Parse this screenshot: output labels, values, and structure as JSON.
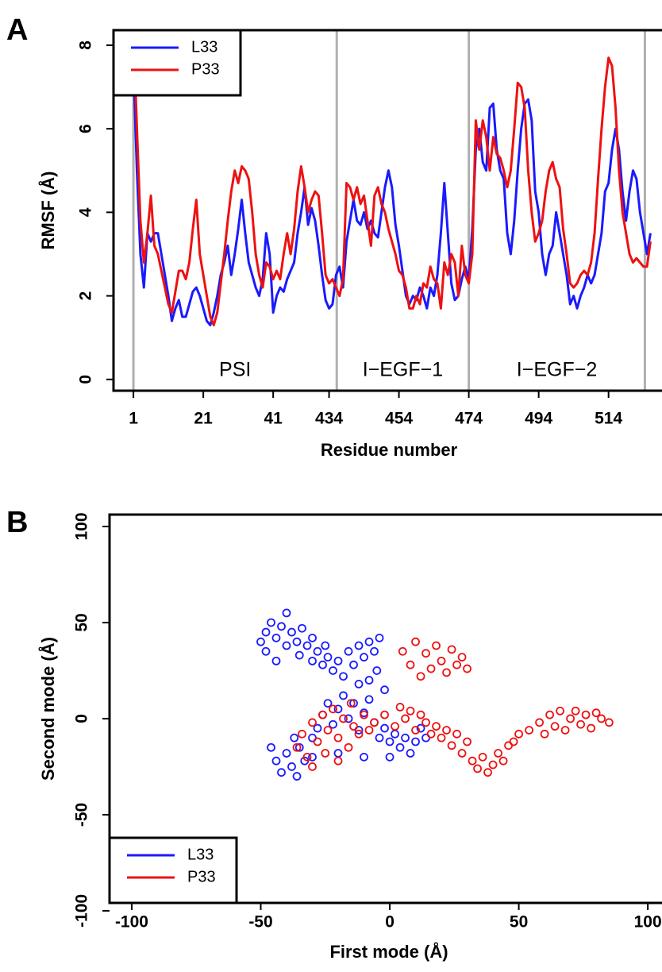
{
  "chart_data": [
    {
      "type": "line",
      "panel_label": "A",
      "xlabel": "Residue number",
      "ylabel": "RMSF (Å)",
      "x": [
        0,
        1,
        2,
        3,
        4,
        5,
        6,
        7,
        8,
        9,
        10,
        11,
        12,
        13,
        14,
        15,
        16,
        17,
        18,
        19,
        20,
        21,
        22,
        23,
        24,
        25,
        26,
        27,
        28,
        29,
        30,
        31,
        32,
        33,
        34,
        35,
        36,
        37,
        38,
        39,
        40,
        41,
        42,
        43,
        44,
        45,
        46,
        47,
        48,
        49,
        50,
        51,
        52,
        53,
        54,
        55,
        56,
        57,
        58,
        59,
        60,
        61,
        62,
        63,
        64,
        65,
        66,
        67,
        68,
        69,
        70,
        71,
        72,
        73,
        74,
        75,
        76,
        77,
        78,
        79,
        80,
        81,
        82,
        83,
        84,
        85,
        86,
        87,
        88,
        89,
        90,
        91,
        92,
        93,
        94,
        95,
        96,
        97,
        98,
        99,
        100,
        101,
        102,
        103,
        104,
        105,
        106,
        107,
        108,
        109,
        110,
        111,
        112,
        113,
        114,
        115,
        116,
        117,
        118,
        119,
        120,
        121,
        122,
        123,
        124,
        125,
        126,
        127,
        128,
        129,
        130,
        131,
        132,
        133,
        134,
        135,
        136,
        137,
        138,
        139,
        140,
        141,
        142,
        143,
        144,
        145,
        146,
        147,
        148
      ],
      "series": [
        {
          "name": "L33",
          "color": "#1a1aff",
          "values": [
            7.5,
            5.0,
            3.0,
            2.2,
            3.5,
            3.3,
            3.5,
            3.5,
            3.0,
            2.5,
            2.0,
            1.4,
            1.7,
            1.9,
            1.5,
            1.5,
            1.8,
            2.1,
            2.2,
            2.0,
            1.7,
            1.4,
            1.3,
            1.6,
            2.0,
            2.5,
            2.8,
            3.2,
            2.5,
            3.0,
            3.6,
            4.3,
            3.5,
            2.8,
            2.5,
            2.2,
            2.0,
            2.4,
            3.5,
            3.0,
            1.6,
            2.0,
            2.2,
            2.1,
            2.4,
            2.6,
            2.8,
            3.5,
            4.0,
            4.6,
            3.7,
            4.1,
            3.8,
            3.2,
            2.5,
            1.9,
            1.7,
            1.8,
            2.5,
            2.7,
            2.2,
            3.3,
            3.8,
            4.3,
            3.8,
            3.7,
            4.0,
            3.6,
            3.8,
            3.5,
            3.4,
            4.0,
            4.6,
            5.0,
            4.6,
            3.7,
            3.2,
            2.6,
            2.0,
            1.8,
            2.0,
            1.9,
            2.2,
            2.0,
            1.7,
            2.2,
            2.0,
            2.5,
            3.5,
            4.7,
            3.5,
            2.3,
            1.9,
            2.0,
            2.4,
            2.7,
            2.4,
            3.6,
            5.5,
            6.0,
            5.2,
            5.0,
            6.5,
            6.6,
            5.5,
            5.0,
            4.8,
            3.5,
            3.0,
            3.8,
            5.0,
            6.0,
            6.6,
            6.7,
            6.2,
            4.5,
            4.0,
            3.0,
            2.5,
            3.0,
            3.2,
            4.0,
            3.5,
            3.0,
            2.5,
            1.8,
            2.0,
            1.7,
            2.0,
            2.2,
            2.5,
            2.3,
            2.5,
            3.0,
            3.5,
            4.5,
            4.7,
            5.5,
            6.0,
            5.5,
            4.5,
            3.8,
            4.5,
            5.0,
            4.8,
            4.0,
            3.5,
            3.0,
            3.5
          ]
        },
        {
          "name": "P33",
          "color": "#ee1111",
          "values": [
            8.4,
            6.0,
            3.8,
            2.8,
            3.5,
            4.4,
            3.2,
            3.0,
            2.6,
            2.2,
            1.8,
            1.6,
            2.1,
            2.6,
            2.6,
            2.4,
            2.8,
            3.6,
            4.3,
            3.0,
            2.5,
            2.0,
            1.5,
            1.3,
            1.6,
            2.3,
            3.0,
            3.8,
            4.5,
            5.0,
            4.7,
            5.1,
            5.0,
            4.8,
            4.0,
            3.0,
            2.5,
            2.2,
            2.8,
            2.7,
            2.4,
            2.6,
            2.4,
            3.0,
            3.5,
            3.0,
            3.6,
            4.5,
            5.1,
            4.6,
            4.0,
            4.3,
            4.5,
            4.4,
            3.5,
            2.5,
            2.3,
            2.4,
            2.2,
            2.0,
            2.4,
            4.7,
            4.6,
            4.3,
            4.6,
            4.2,
            4.4,
            3.8,
            3.2,
            4.4,
            4.6,
            4.2,
            4.0,
            3.6,
            3.3,
            3.0,
            2.6,
            2.5,
            2.2,
            1.7,
            1.7,
            2.0,
            1.8,
            2.3,
            2.2,
            2.7,
            2.4,
            2.3,
            1.7,
            2.8,
            2.5,
            3.0,
            2.8,
            2.0,
            3.2,
            2.5,
            2.3,
            3.0,
            6.2,
            5.5,
            6.2,
            5.8,
            5.0,
            5.8,
            5.4,
            5.3,
            5.0,
            4.6,
            5.0,
            6.0,
            7.1,
            7.0,
            6.5,
            5.0,
            4.0,
            3.3,
            3.5,
            3.8,
            4.5,
            5.0,
            5.2,
            4.8,
            4.6,
            3.6,
            3.0,
            2.3,
            2.2,
            2.3,
            2.5,
            2.6,
            2.5,
            2.8,
            3.5,
            4.8,
            6.0,
            7.0,
            7.7,
            7.5,
            6.5,
            5.0,
            4.0,
            3.5,
            3.0,
            2.8,
            2.9,
            2.8,
            2.7,
            2.7,
            3.3
          ]
        }
      ],
      "regions": [
        "PSI",
        "I−EGF−1",
        "I−EGF−2"
      ],
      "region_boundaries": [
        0,
        58.2,
        96,
        146.4
      ],
      "xlim": [
        -5.7,
        151.3
      ],
      "ylim": [
        -0.27,
        8.36
      ],
      "xticks": [
        {
          "value": 0,
          "label": "1"
        },
        {
          "value": 20,
          "label": "21"
        },
        {
          "value": 40,
          "label": "41"
        },
        {
          "value": 56,
          "label": "434"
        },
        {
          "value": 76,
          "label": "454"
        },
        {
          "value": 96,
          "label": "474"
        },
        {
          "value": 116,
          "label": "494"
        },
        {
          "value": 136,
          "label": "514"
        }
      ],
      "yticks": [
        0,
        2,
        4,
        6,
        8
      ],
      "legend": "top-left",
      "grid": false
    },
    {
      "type": "scatter",
      "panel_label": "B",
      "xlabel": "First mode (Å)",
      "ylabel": "Second mode (Å)",
      "series": [
        {
          "name": "L33",
          "color": "#1a1aff",
          "x": [
            -50,
            -48,
            -46,
            -44,
            -42,
            -40,
            -40,
            -38,
            -36,
            -35,
            -34,
            -32,
            -30,
            -30,
            -28,
            -26,
            -25,
            -24,
            -22,
            -20,
            -18,
            -16,
            -14,
            -12,
            -10,
            -8,
            -6,
            -5,
            -4,
            -8,
            -12,
            -46,
            -44,
            -42,
            -40,
            -38,
            -36,
            -35,
            -33,
            -30,
            -28,
            -26,
            -24,
            -22,
            -20,
            -18,
            -16,
            -14,
            -12,
            -10,
            -8,
            -6,
            -4,
            -2,
            0,
            2,
            4,
            6,
            8,
            10,
            12,
            14,
            -30,
            -20,
            -10,
            0,
            -2,
            -44,
            -48,
            -37
          ],
          "values": [
            40,
            45,
            50,
            42,
            48,
            55,
            38,
            45,
            40,
            33,
            47,
            38,
            30,
            42,
            35,
            28,
            38,
            32,
            25,
            30,
            22,
            35,
            28,
            38,
            32,
            40,
            35,
            25,
            42,
            20,
            18,
            -15,
            -22,
            -28,
            -18,
            -25,
            -30,
            -15,
            -22,
            -10,
            -5,
            2,
            8,
            -3,
            5,
            12,
            0,
            8,
            -6,
            3,
            10,
            -2,
            -10,
            -5,
            -12,
            -8,
            -15,
            -10,
            -18,
            -12,
            -5,
            -10,
            -20,
            -18,
            -20,
            -20,
            15,
            30,
            35,
            -10
          ]
        },
        {
          "name": "P33",
          "color": "#ee1111",
          "x": [
            -36,
            -34,
            -32,
            -30,
            -28,
            -26,
            -25,
            -24,
            -22,
            -20,
            -18,
            -16,
            -15,
            -14,
            -12,
            -10,
            -8,
            -6,
            -20,
            -30,
            5,
            8,
            10,
            12,
            14,
            16,
            18,
            20,
            22,
            24,
            26,
            28,
            30,
            -2,
            2,
            4,
            6,
            8,
            10,
            12,
            14,
            16,
            18,
            20,
            22,
            24,
            26,
            28,
            30,
            32,
            34,
            36,
            38,
            40,
            42,
            44,
            46,
            48,
            50,
            54,
            58,
            60,
            62,
            64,
            66,
            68,
            70,
            72,
            74,
            76,
            78,
            80,
            82,
            85
          ],
          "values": [
            -15,
            -8,
            -20,
            -2,
            -12,
            2,
            -18,
            -6,
            5,
            -10,
            0,
            -15,
            8,
            -4,
            -8,
            2,
            -6,
            -2,
            -22,
            -25,
            35,
            28,
            40,
            22,
            34,
            26,
            38,
            30,
            24,
            36,
            28,
            32,
            26,
            2,
            -4,
            6,
            0,
            4,
            -6,
            2,
            -2,
            -8,
            -4,
            -10,
            -6,
            -14,
            -8,
            -18,
            -12,
            -22,
            -26,
            -20,
            -28,
            -24,
            -18,
            -22,
            -14,
            -12,
            -8,
            -6,
            -2,
            -8,
            2,
            -4,
            4,
            -6,
            0,
            4,
            -3,
            2,
            -5,
            3,
            0,
            -2
          ]
        }
      ],
      "xlim": [
        -108.6,
        105.5
      ],
      "ylim": [
        -95.9,
        106.2
      ],
      "xticks": [
        -100,
        -50,
        0,
        50,
        100
      ],
      "yticks": [
        -100,
        -50,
        0,
        50,
        100
      ],
      "legend": "bottom-left",
      "grid": false
    }
  ]
}
